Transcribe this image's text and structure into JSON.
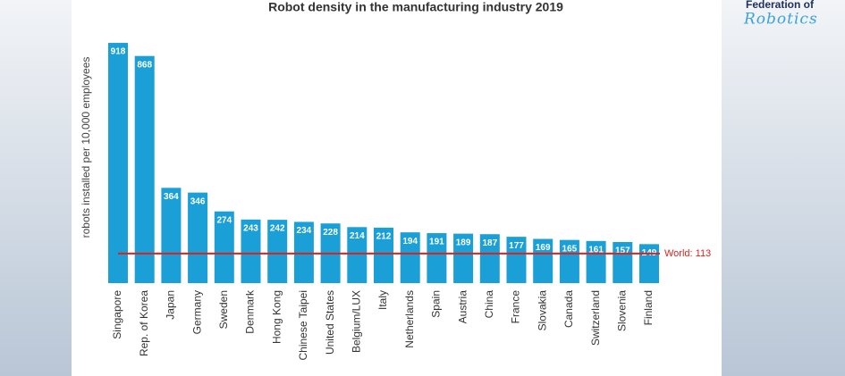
{
  "chart_data": {
    "type": "bar",
    "title": "Robot density in the manufacturing industry 2019",
    "y_label": "robots installed per 10,000 employees",
    "categories": [
      "Singapore",
      "Rep. of Korea",
      "Japan",
      "Germany",
      "Sweden",
      "Denmark",
      "Hong Kong",
      "Chinese Taipei",
      "United States",
      "Belgium/LUX",
      "Italy",
      "Netherlands",
      "Spain",
      "Austria",
      "China",
      "France",
      "Slovakia",
      "Canada",
      "Switzerland",
      "Slovenia",
      "Finland"
    ],
    "values": [
      918,
      868,
      364,
      346,
      274,
      243,
      242,
      234,
      228,
      214,
      212,
      194,
      191,
      189,
      187,
      177,
      169,
      165,
      161,
      157,
      149
    ],
    "color": "#1a9fd6",
    "ylim": [
      0,
      1000
    ],
    "reference_line": {
      "value": 113,
      "label": "World: 113",
      "color": "#e0201b"
    },
    "logo": {
      "line1": "Federation of",
      "line2": "Robotics"
    }
  }
}
